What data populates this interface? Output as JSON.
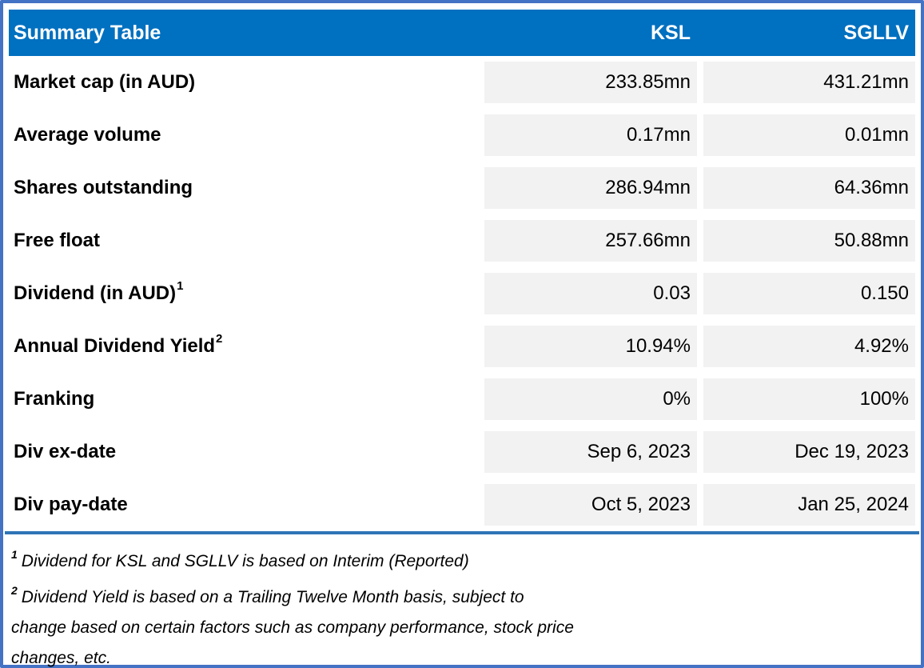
{
  "table": {
    "title": "Summary Table",
    "columns": [
      "KSL",
      "SGLLV"
    ],
    "rows": [
      {
        "label": "Market cap (in AUD)",
        "ksl": "233.85mn",
        "sgllv": "431.21mn"
      },
      {
        "label": "Average volume",
        "ksl": "0.17mn",
        "sgllv": "0.01mn"
      },
      {
        "label": "Shares outstanding",
        "ksl": "286.94mn",
        "sgllv": "64.36mn"
      },
      {
        "label": "Free float",
        "ksl": "257.66mn",
        "sgllv": "50.88mn"
      },
      {
        "label": "Dividend (in AUD)",
        "sup": "1",
        "ksl": "0.03",
        "sgllv": "0.150"
      },
      {
        "label": "Annual Dividend Yield",
        "sup": "2",
        "ksl": "10.94%",
        "sgllv": "4.92%"
      },
      {
        "label": "Franking",
        "ksl": "0%",
        "sgllv": "100%"
      },
      {
        "label": "Div ex-date",
        "ksl": "Sep 6, 2023",
        "sgllv": "Dec 19, 2023"
      },
      {
        "label": "Div pay-date",
        "ksl": "Oct 5, 2023",
        "sgllv": "Jan 25, 2024"
      }
    ],
    "footnotes": [
      {
        "sup": "1",
        "lines": [
          "Dividend for KSL and SGLLV is based on Interim (Reported)"
        ]
      },
      {
        "sup": "2",
        "lines": [
          "Dividend Yield is based on a Trailing Twelve Month basis, subject to",
          "change based on certain factors such as company performance, stock price",
          "changes, etc."
        ]
      }
    ],
    "colors": {
      "header_bg": "#0070C0",
      "header_text": "#FFFFFF",
      "cell_bg": "#F2F2F2",
      "outer_border": "#4472C4",
      "rule": "#2E75B6",
      "text": "#000000"
    }
  }
}
